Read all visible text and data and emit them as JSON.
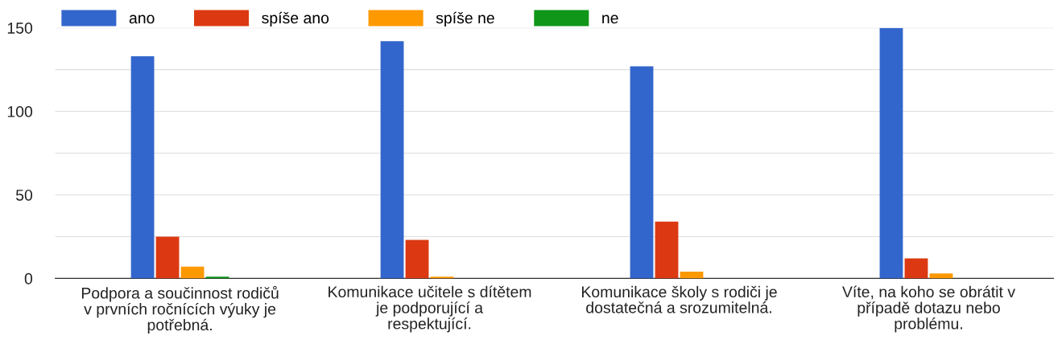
{
  "chart_data": {
    "type": "bar",
    "categories": [
      "Podpora a součinnost rodičů v prvních ročnících výuky je potřebná.",
      "Komunikace učitele s dítětem je podporující a respektující.",
      "Komunikace školy s rodiči je dostatečná a srozumitelná.",
      "Víte, na koho se obrátit v případě dotazu nebo problému."
    ],
    "series": [
      {
        "name": "ano",
        "color": "#3366cc",
        "values": [
          133,
          142,
          127,
          150
        ]
      },
      {
        "name": "spíše ano",
        "color": "#dc3912",
        "values": [
          25,
          23,
          34,
          12
        ]
      },
      {
        "name": "spíše ne",
        "color": "#ff9900",
        "values": [
          7,
          1,
          4,
          3
        ]
      },
      {
        "name": "ne",
        "color": "#109618",
        "values": [
          1,
          0,
          0,
          0
        ]
      }
    ],
    "ylim": [
      0,
      150
    ],
    "yticks": [
      0,
      {
        "value": 25,
        "label": null
      },
      50,
      {
        "value": 75,
        "label": null
      },
      100,
      {
        "value": 125,
        "label": null
      },
      150
    ],
    "grid": "y",
    "legend": "top left"
  }
}
